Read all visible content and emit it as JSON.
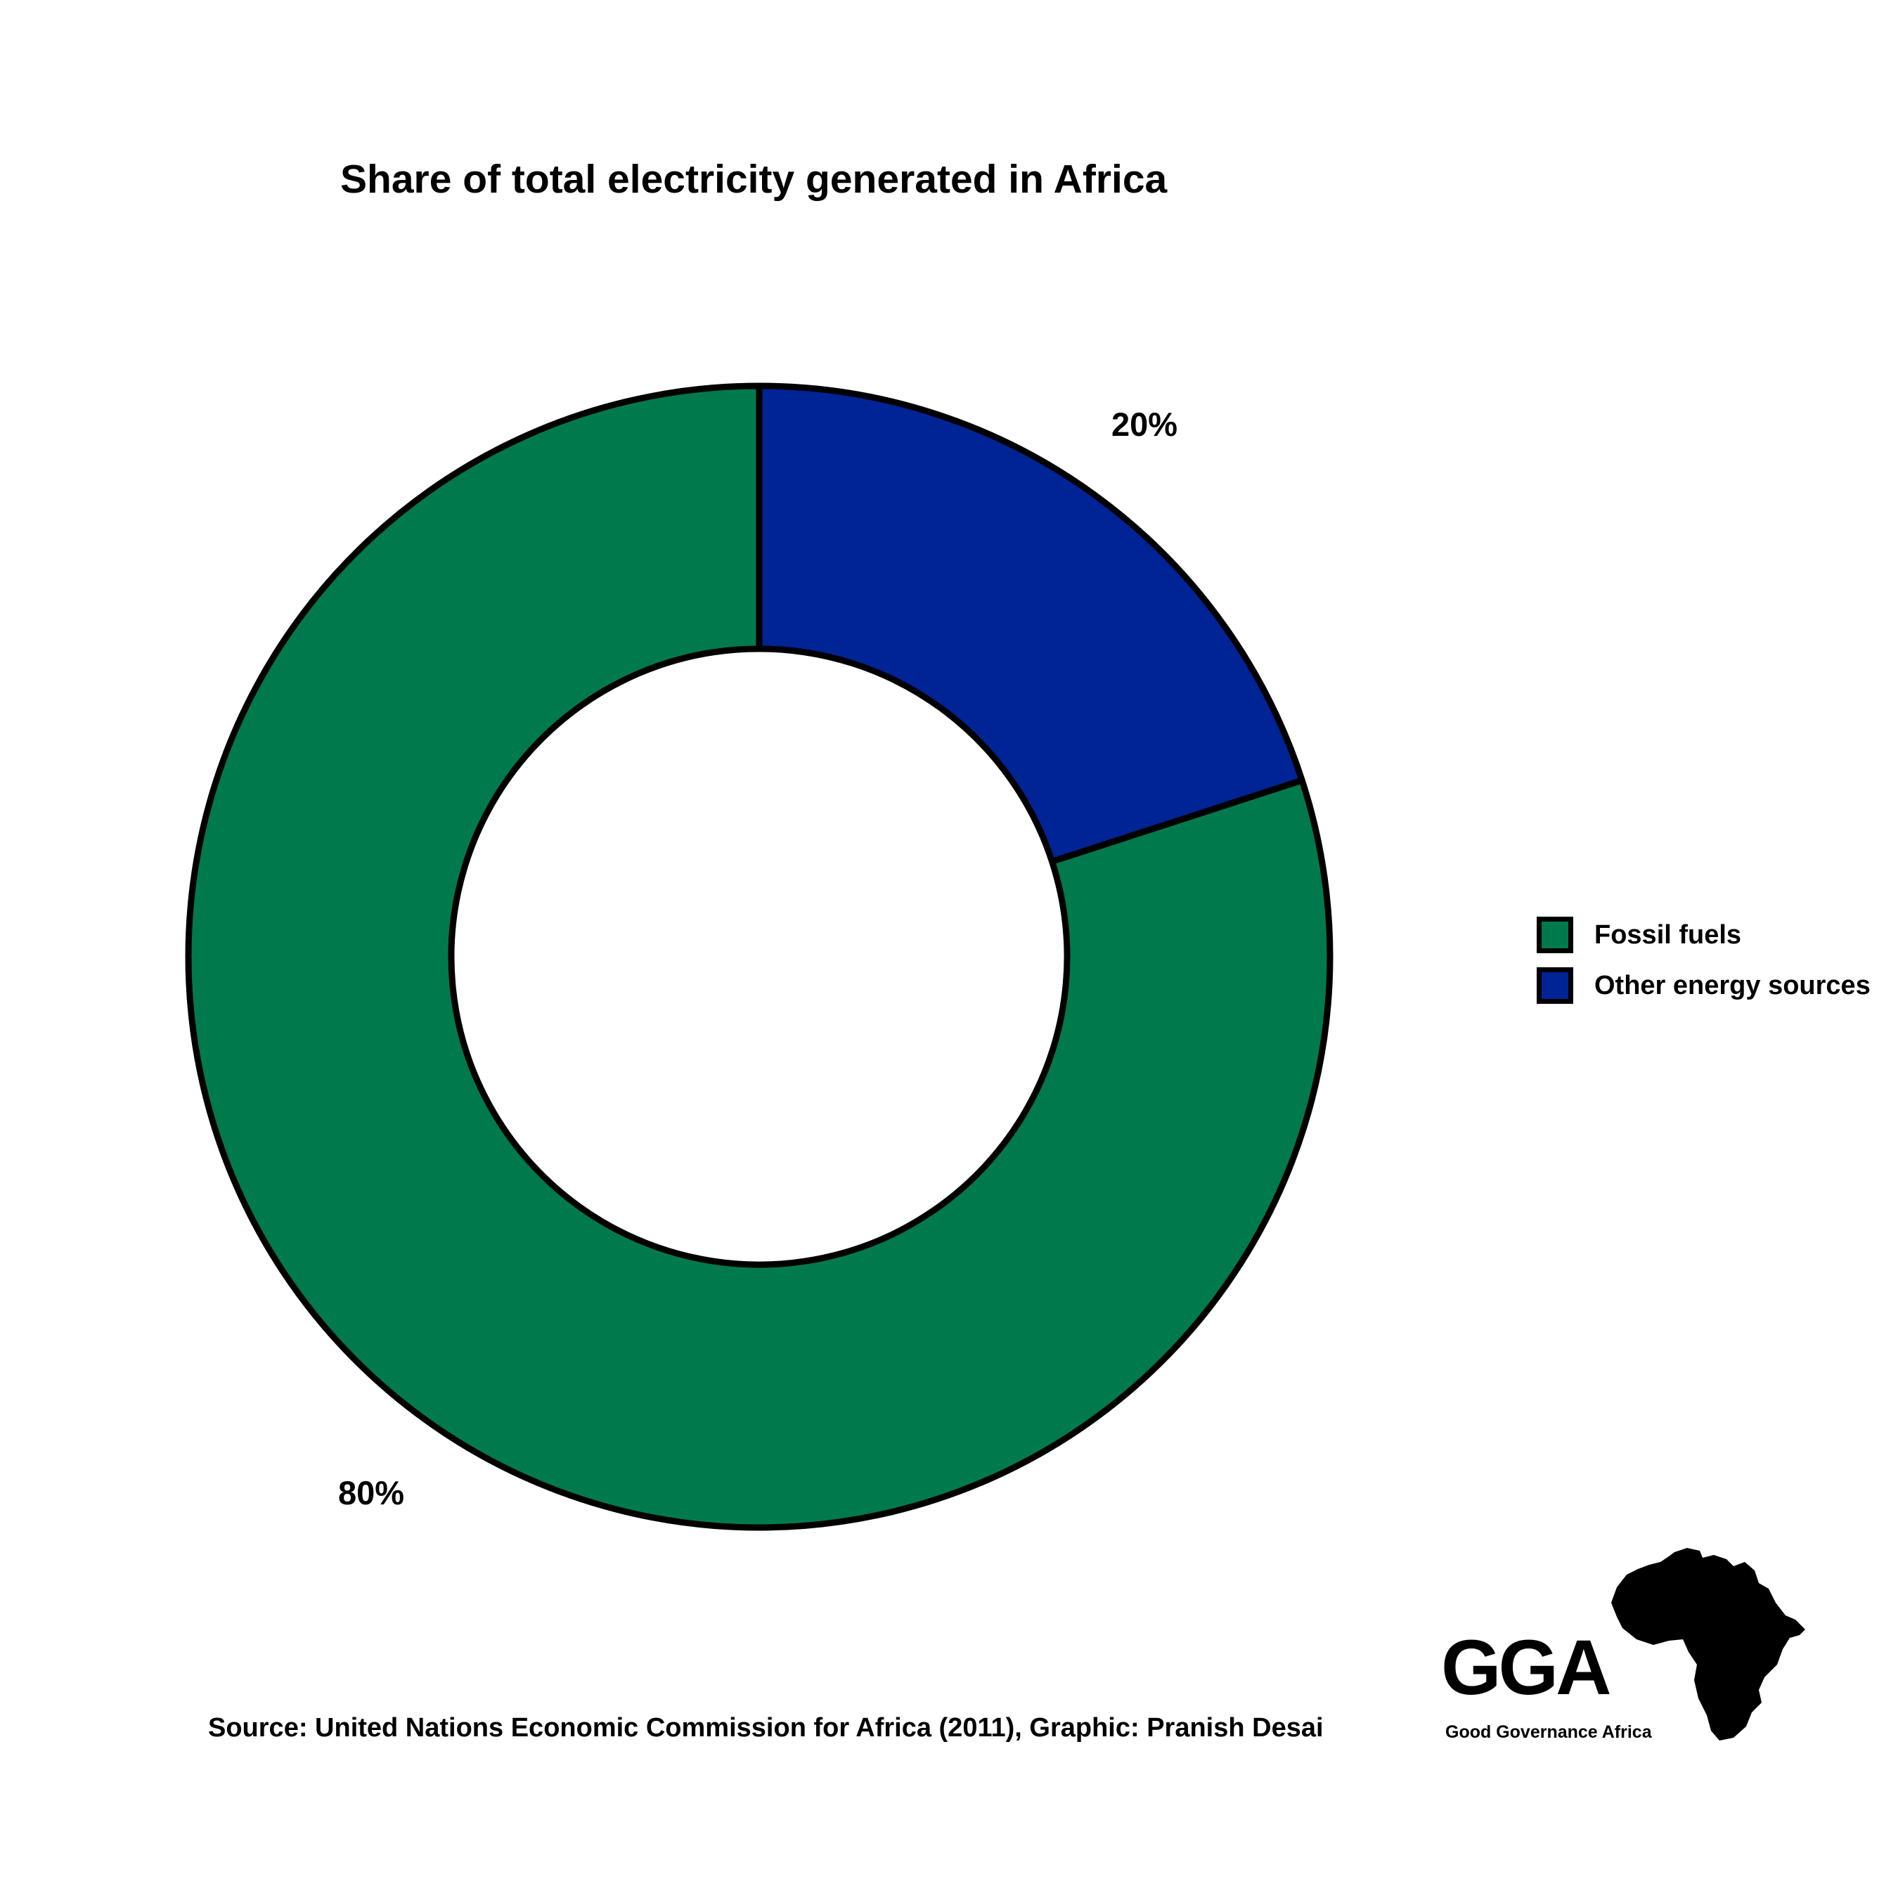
{
  "title": "Share of total electricity generated in Africa",
  "chart_data": {
    "type": "pie",
    "title": "Share of total electricity generated in Africa",
    "donut": true,
    "slices": [
      {
        "name": "Other energy sources",
        "value": 20,
        "label": "20%",
        "color": "#002395"
      },
      {
        "name": "Fossil fuels",
        "value": 80,
        "label": "80%",
        "color": "#007A4D"
      }
    ],
    "legend": {
      "placement": "right",
      "entries": [
        {
          "label": "Fossil fuels",
          "color": "#007A4D"
        },
        {
          "label": "Other energy sources",
          "color": "#002395"
        }
      ]
    }
  },
  "source": "Source: United Nations Economic Commission for Africa (2011), Graphic: Pranish Desai",
  "logo": {
    "wordmark": "GGA",
    "subtitle": "Good Governance Africa",
    "icon": "africa-map-icon"
  }
}
